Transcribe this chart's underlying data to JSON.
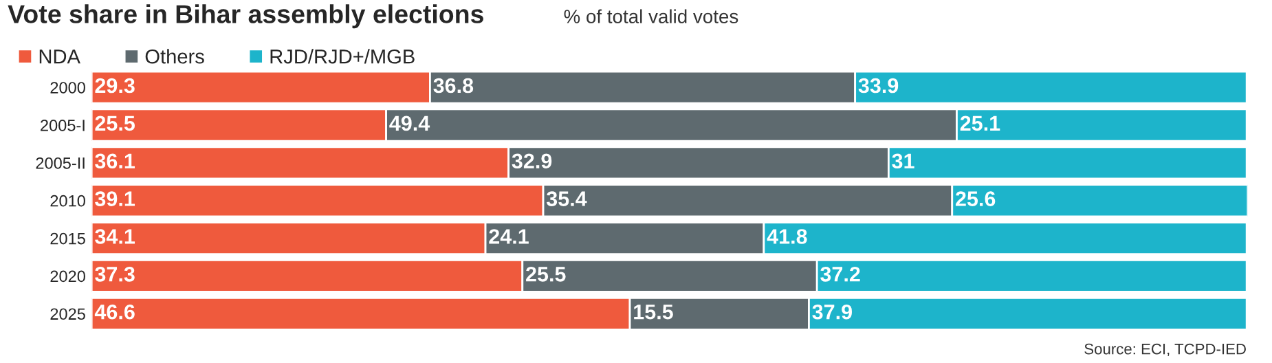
{
  "chart_data": {
    "type": "bar",
    "orientation": "horizontal",
    "stacked": true,
    "title": "Vote share in Bihar assembly elections",
    "subtitle": "% of total valid votes",
    "categories": [
      "2000",
      "2005-I",
      "2005-II",
      "2010",
      "2015",
      "2020",
      "2025"
    ],
    "series": [
      {
        "name": "NDA",
        "color": "#ef5a3d",
        "values": [
          29.3,
          25.5,
          36.1,
          39.1,
          34.1,
          37.3,
          46.6
        ]
      },
      {
        "name": "Others",
        "color": "#5e6a6f",
        "values": [
          36.8,
          49.4,
          32.9,
          35.4,
          24.1,
          25.5,
          15.5
        ]
      },
      {
        "name": "RJD/RJD+/MGB",
        "color": "#1db4cb",
        "values": [
          33.9,
          25.1,
          31,
          25.6,
          41.8,
          37.2,
          37.9
        ]
      }
    ],
    "data_labels": true,
    "legend": "top left",
    "grid": false,
    "annotations": [
      "Source: ECI, TCPD-IED"
    ]
  }
}
